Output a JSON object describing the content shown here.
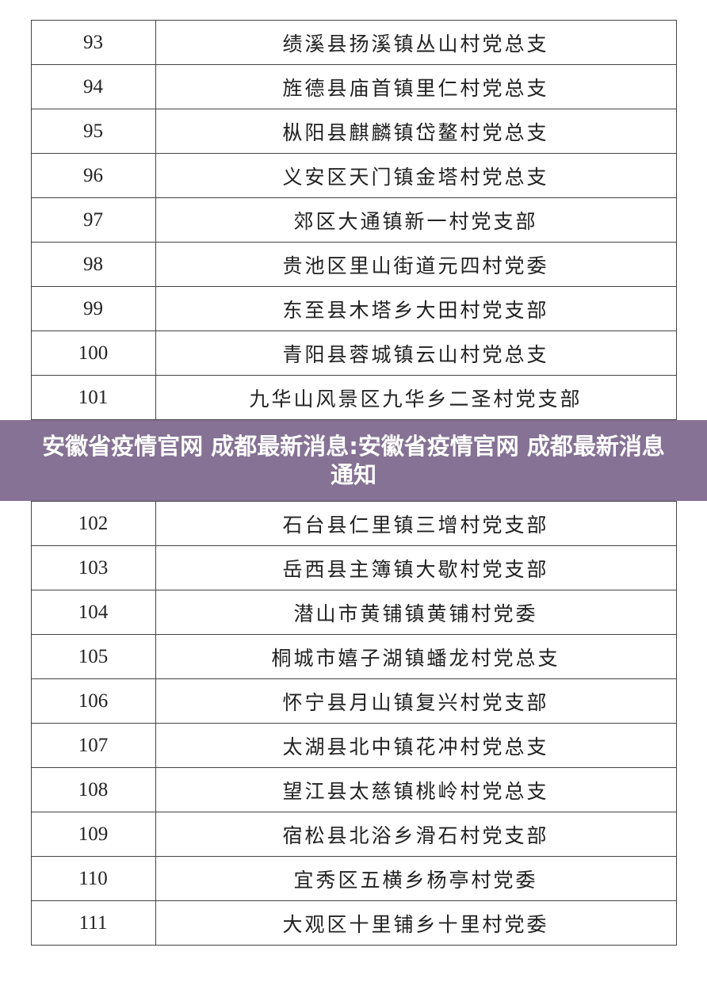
{
  "rows": [
    {
      "num": "93",
      "name": "绩溪县扬溪镇丛山村党总支"
    },
    {
      "num": "94",
      "name": "旌德县庙首镇里仁村党总支"
    },
    {
      "num": "95",
      "name": "枞阳县麒麟镇岱鳌村党总支"
    },
    {
      "num": "96",
      "name": "义安区天门镇金塔村党总支"
    },
    {
      "num": "97",
      "name": "郊区大通镇新一村党支部"
    },
    {
      "num": "98",
      "name": "贵池区里山街道元四村党委"
    },
    {
      "num": "99",
      "name": "东至县木塔乡大田村党支部"
    },
    {
      "num": "100",
      "name": "青阳县蓉城镇云山村党总支"
    },
    {
      "num": "101",
      "name": "九华山风景区九华乡二圣村党支部"
    },
    {
      "num": "102",
      "name": "石台县仁里镇三增村党支部"
    },
    {
      "num": "103",
      "name": "岳西县主簿镇大歇村党支部"
    },
    {
      "num": "104",
      "name": "潜山市黄铺镇黄铺村党委"
    },
    {
      "num": "105",
      "name": "桐城市嬉子湖镇蟠龙村党总支"
    },
    {
      "num": "106",
      "name": "怀宁县月山镇复兴村党支部"
    },
    {
      "num": "107",
      "name": "太湖县北中镇花冲村党总支"
    },
    {
      "num": "108",
      "name": "望江县太慈镇桃岭村党总支"
    },
    {
      "num": "109",
      "name": "宿松县北浴乡滑石村党支部"
    },
    {
      "num": "110",
      "name": "宜秀区五横乡杨亭村党委"
    },
    {
      "num": "111",
      "name": "大观区十里铺乡十里村党委"
    }
  ],
  "banner": {
    "title": "安徽省疫情官网 成都最新消息:安徽省疫情官网 成都最新消息通知",
    "color": "#867294"
  }
}
